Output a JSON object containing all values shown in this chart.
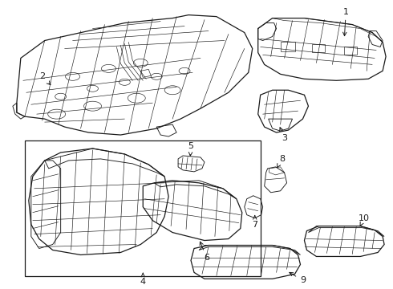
{
  "bg_color": "#ffffff",
  "line_color": "#1a1a1a",
  "fig_width": 4.9,
  "fig_height": 3.6,
  "dpi": 100,
  "lw": 0.65,
  "lw_thick": 0.9,
  "lw_thin": 0.45
}
